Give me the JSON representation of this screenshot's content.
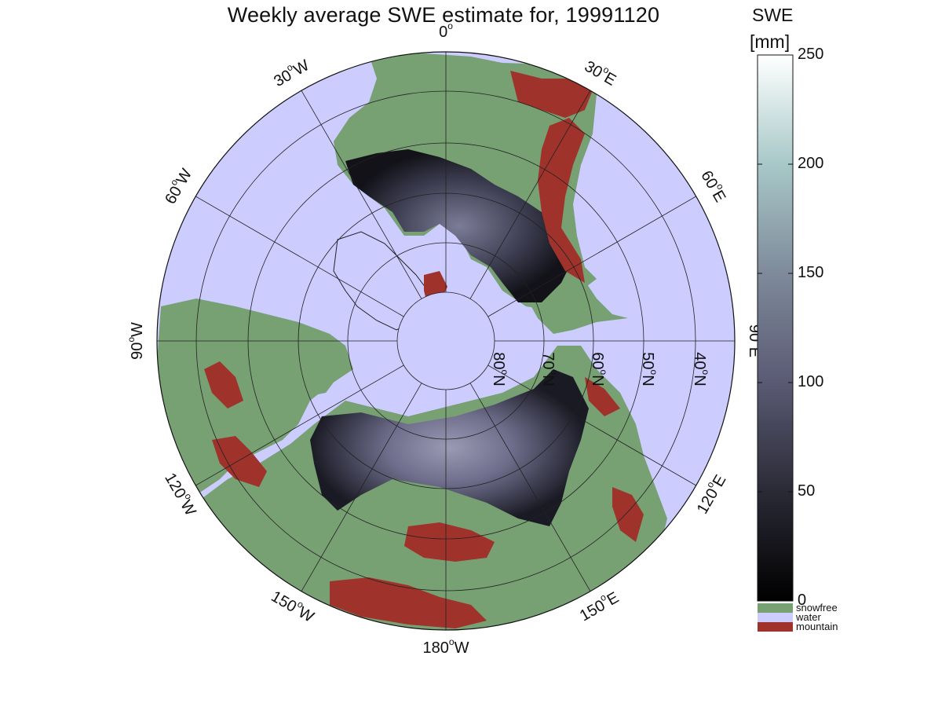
{
  "title": "Weekly average SWE estimate for, 19991120",
  "map": {
    "projection": "north polar stereographic",
    "longitude_labels": [
      {
        "deg": 90,
        "text": "90°W",
        "num": "90",
        "sup": "o",
        "suffix": "W"
      },
      {
        "deg": 60,
        "text": "60°W",
        "num": "60",
        "sup": "o",
        "suffix": "W"
      },
      {
        "deg": 30,
        "text": "30°W",
        "num": "30",
        "sup": "o",
        "suffix": "W"
      },
      {
        "deg": 0,
        "text": "0°",
        "num": "0",
        "sup": "o",
        "suffix": ""
      },
      {
        "deg": -30,
        "text": "30°E",
        "num": "30",
        "sup": "o",
        "suffix": "E"
      },
      {
        "deg": -60,
        "text": "60°E",
        "num": "60",
        "sup": "o",
        "suffix": "E"
      },
      {
        "deg": -90,
        "text": "90°E",
        "num": "90",
        "sup": "o",
        "suffix": "E"
      },
      {
        "deg": -120,
        "text": "120°E",
        "num": "120",
        "sup": "o",
        "suffix": "E"
      },
      {
        "deg": -150,
        "text": "150°E",
        "num": "150",
        "sup": "o",
        "suffix": "E"
      },
      {
        "deg": 180,
        "text": "180°W",
        "num": "180",
        "sup": "o",
        "suffix": "W"
      },
      {
        "deg": 150,
        "text": "150°W",
        "num": "150",
        "sup": "o",
        "suffix": "W"
      },
      {
        "deg": 120,
        "text": "120°W",
        "num": "120",
        "sup": "o",
        "suffix": "W"
      }
    ],
    "latitude_labels": [
      {
        "lat": 80,
        "text": "80°N",
        "num": "80",
        "sup": "o",
        "suffix": "N"
      },
      {
        "lat": 70,
        "text": "70°N",
        "num": "70",
        "sup": "o",
        "suffix": "N"
      },
      {
        "lat": 60,
        "text": "60°N",
        "num": "60",
        "sup": "o",
        "suffix": "N"
      },
      {
        "lat": 50,
        "text": "50°N",
        "num": "50",
        "sup": "o",
        "suffix": "N"
      },
      {
        "lat": 40,
        "text": "40°N",
        "num": "40",
        "sup": "o",
        "suffix": "N"
      }
    ],
    "colors": {
      "water": "#ccccff",
      "snowfree": "#77a073",
      "mountain": "#a0322c",
      "swe_low": "#121218",
      "swe_high": "#8a8aa8",
      "ice_edge": "#222222"
    }
  },
  "colorbar": {
    "title_line1": "SWE",
    "title_line2": "[mm]",
    "ticks": [
      "0",
      "50",
      "100",
      "150",
      "200",
      "250"
    ],
    "range": [
      0,
      250
    ],
    "categories": [
      {
        "label": "snowfree",
        "color": "#77a073"
      },
      {
        "label": "water",
        "color": "#ccccff"
      },
      {
        "label": "mountain",
        "color": "#a0322c"
      }
    ]
  }
}
